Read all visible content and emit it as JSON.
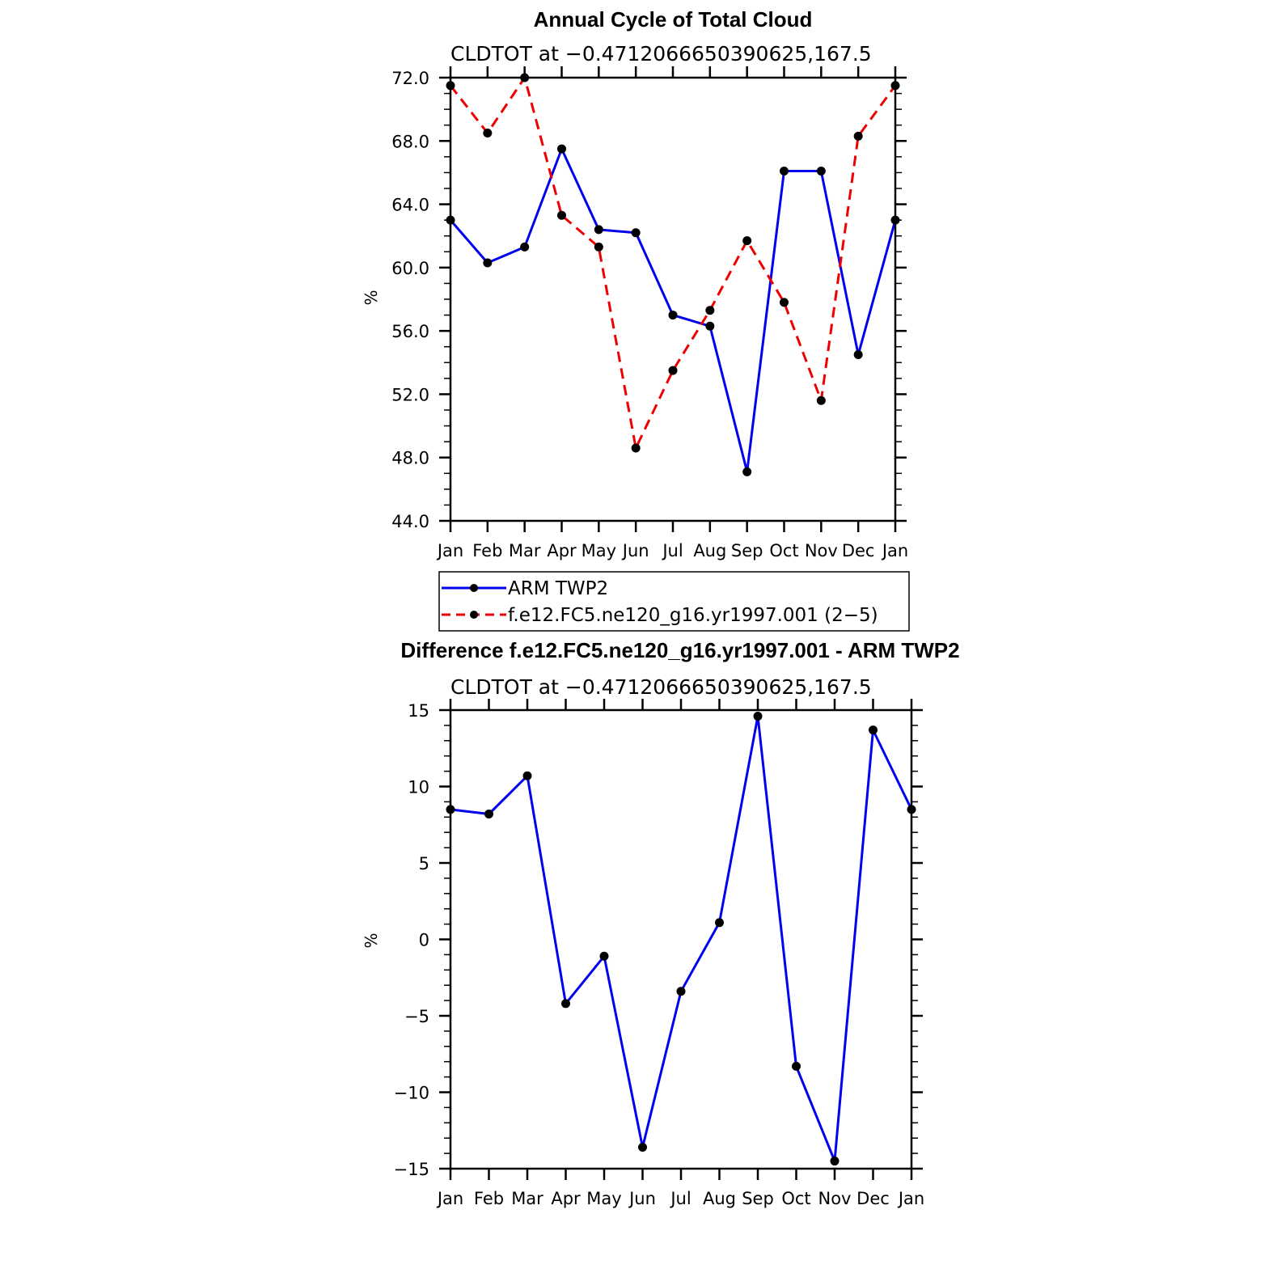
{
  "chart_data": [
    {
      "type": "line",
      "title": "Annual Cycle of Total Cloud",
      "subtitle": "CLDTOT at −0.4712066650390625,167.5",
      "ylabel": "%",
      "ylim": [
        44,
        72
      ],
      "yticks": [
        "44.0",
        "48.0",
        "52.0",
        "56.0",
        "60.0",
        "64.0",
        "68.0",
        "72.0"
      ],
      "x_labels": [
        "Jan",
        "Feb",
        "Mar",
        "Apr",
        "May",
        "Jun",
        "Jul",
        "Aug",
        "Sep",
        "Oct",
        "Nov",
        "Dec",
        "Jan"
      ],
      "grid": false,
      "legend": {
        "placement": "bottom",
        "entries": [
          "ARM TWP2",
          "f.e12.FC5.ne120_g16.yr1997.001 (2−5)"
        ]
      },
      "series": [
        {
          "name": "ARM TWP2",
          "color": "#0000ee",
          "dash": "solid",
          "values": [
            63.0,
            60.3,
            61.3,
            67.5,
            62.4,
            62.2,
            57.0,
            56.3,
            47.1,
            66.1,
            66.1,
            54.5,
            63.0
          ]
        },
        {
          "name": "f.e12.FC5.ne120_g16.yr1997.001 (2−5)",
          "color": "#ee0000",
          "dash": "dashed",
          "values": [
            71.5,
            68.5,
            72.0,
            63.3,
            61.3,
            48.6,
            53.5,
            57.3,
            61.7,
            57.8,
            51.6,
            68.3,
            71.5
          ]
        }
      ]
    },
    {
      "type": "line",
      "title": "Difference f.e12.FC5.ne120_g16.yr1997.001 - ARM TWP2",
      "subtitle": "CLDTOT at −0.4712066650390625,167.5",
      "ylabel": "%",
      "ylim": [
        -15,
        15
      ],
      "yticks": [
        "−15",
        "−10",
        "−5",
        "0",
        "5",
        "10",
        "15"
      ],
      "x_labels": [
        "Jan",
        "Feb",
        "Mar",
        "Apr",
        "May",
        "Jun",
        "Jul",
        "Aug",
        "Sep",
        "Oct",
        "Nov",
        "Dec",
        "Jan"
      ],
      "grid": false,
      "series": [
        {
          "color": "#0000ee",
          "dash": "solid",
          "values": [
            8.5,
            8.2,
            10.7,
            -4.2,
            -1.1,
            -13.6,
            -3.4,
            1.1,
            14.6,
            -8.3,
            -14.5,
            13.7,
            8.5
          ]
        }
      ]
    }
  ]
}
